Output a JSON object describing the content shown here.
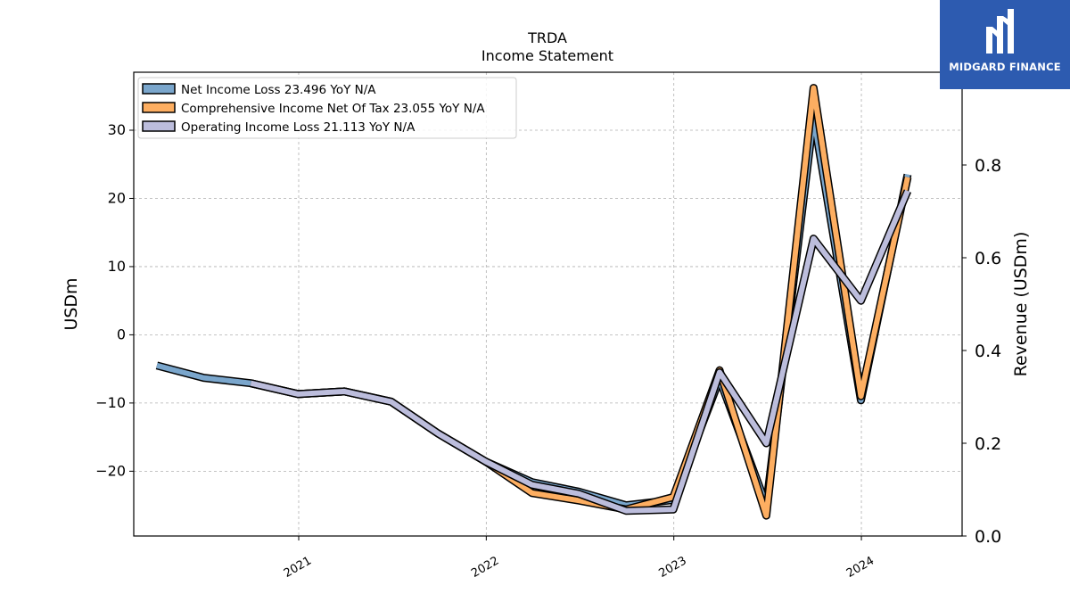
{
  "chart_data": {
    "type": "line",
    "title": "TRDA",
    "subtitle": "Income Statement",
    "ylabel": "USDm",
    "y2label": "Revenue (USDm)",
    "ylim": [
      -29.5,
      38.5
    ],
    "y2lim": [
      0.0,
      1.0
    ],
    "yticks": [
      30,
      20,
      10,
      0,
      -10,
      -20
    ],
    "ytick_labels": [
      "30",
      "20",
      "10",
      "0",
      "−10",
      "−20"
    ],
    "y2ticks": [
      0.8,
      0.6,
      0.4,
      0.2,
      0.0
    ],
    "y2tick_labels": [
      "0.8",
      "0.6",
      "0.4",
      "0.2",
      "0.0"
    ],
    "xlim": [
      "2020-02-15",
      "2024-07-15"
    ],
    "xticks": [
      "2021-01-01",
      "2022-01-01",
      "2023-01-01",
      "2024-01-01"
    ],
    "xtick_labels": [
      "2021",
      "2022",
      "2023",
      "2024"
    ],
    "grid": true,
    "legend_position": "top-left",
    "series": [
      {
        "name": "Net Income Loss  23.496 YoY N/A",
        "color": "#7aa6cc",
        "x": [
          "2020-03-31",
          "2020-06-30",
          "2020-09-30",
          "2020-12-31",
          "2021-03-31",
          "2021-06-30",
          "2021-09-30",
          "2021-12-31",
          "2022-03-31",
          "2022-06-30",
          "2022-09-30",
          "2022-12-31",
          "2023-03-31",
          "2023-06-30",
          "2023-09-30",
          "2023-12-31",
          "2024-03-31"
        ],
        "values": [
          -4.5,
          -6.3,
          -7.1,
          -8.7,
          -8.3,
          -9.8,
          -14.5,
          -18.6,
          -21.6,
          -23.0,
          -25.0,
          -24.2,
          -6.5,
          -25.0,
          32.0,
          -9.6,
          23.5
        ]
      },
      {
        "name": "Comprehensive Income Net Of Tax  23.055 YoY N/A",
        "color": "#fdae61",
        "x": [
          "2020-09-30",
          "2020-12-31",
          "2021-03-31",
          "2021-06-30",
          "2021-09-30",
          "2021-12-31",
          "2022-03-31",
          "2022-06-30",
          "2022-09-30",
          "2022-12-31",
          "2023-03-31",
          "2023-06-30",
          "2023-09-30",
          "2023-12-31",
          "2024-03-31"
        ],
        "values": [
          -7.1,
          -8.7,
          -8.3,
          -9.8,
          -14.5,
          -18.6,
          -23.2,
          -24.3,
          -25.6,
          -23.8,
          -5.2,
          -26.5,
          36.2,
          -9.0,
          23.1
        ]
      },
      {
        "name": "Operating Income Loss  21.113 YoY N/A",
        "color": "#bcbddc",
        "x": [
          "2020-09-30",
          "2020-12-31",
          "2021-03-31",
          "2021-06-30",
          "2021-09-30",
          "2021-12-31",
          "2022-03-31",
          "2022-06-30",
          "2022-09-30",
          "2022-12-31",
          "2023-03-31",
          "2023-06-30",
          "2023-09-30",
          "2023-12-31",
          "2024-03-31"
        ],
        "values": [
          -7.1,
          -8.7,
          -8.3,
          -9.8,
          -14.5,
          -18.6,
          -22.0,
          -23.3,
          -25.8,
          -25.6,
          -5.5,
          -15.9,
          14.1,
          5.0,
          21.1
        ]
      }
    ]
  },
  "logo": {
    "text": "MIDGARD FINANCE",
    "background": "#2d5bb0"
  }
}
